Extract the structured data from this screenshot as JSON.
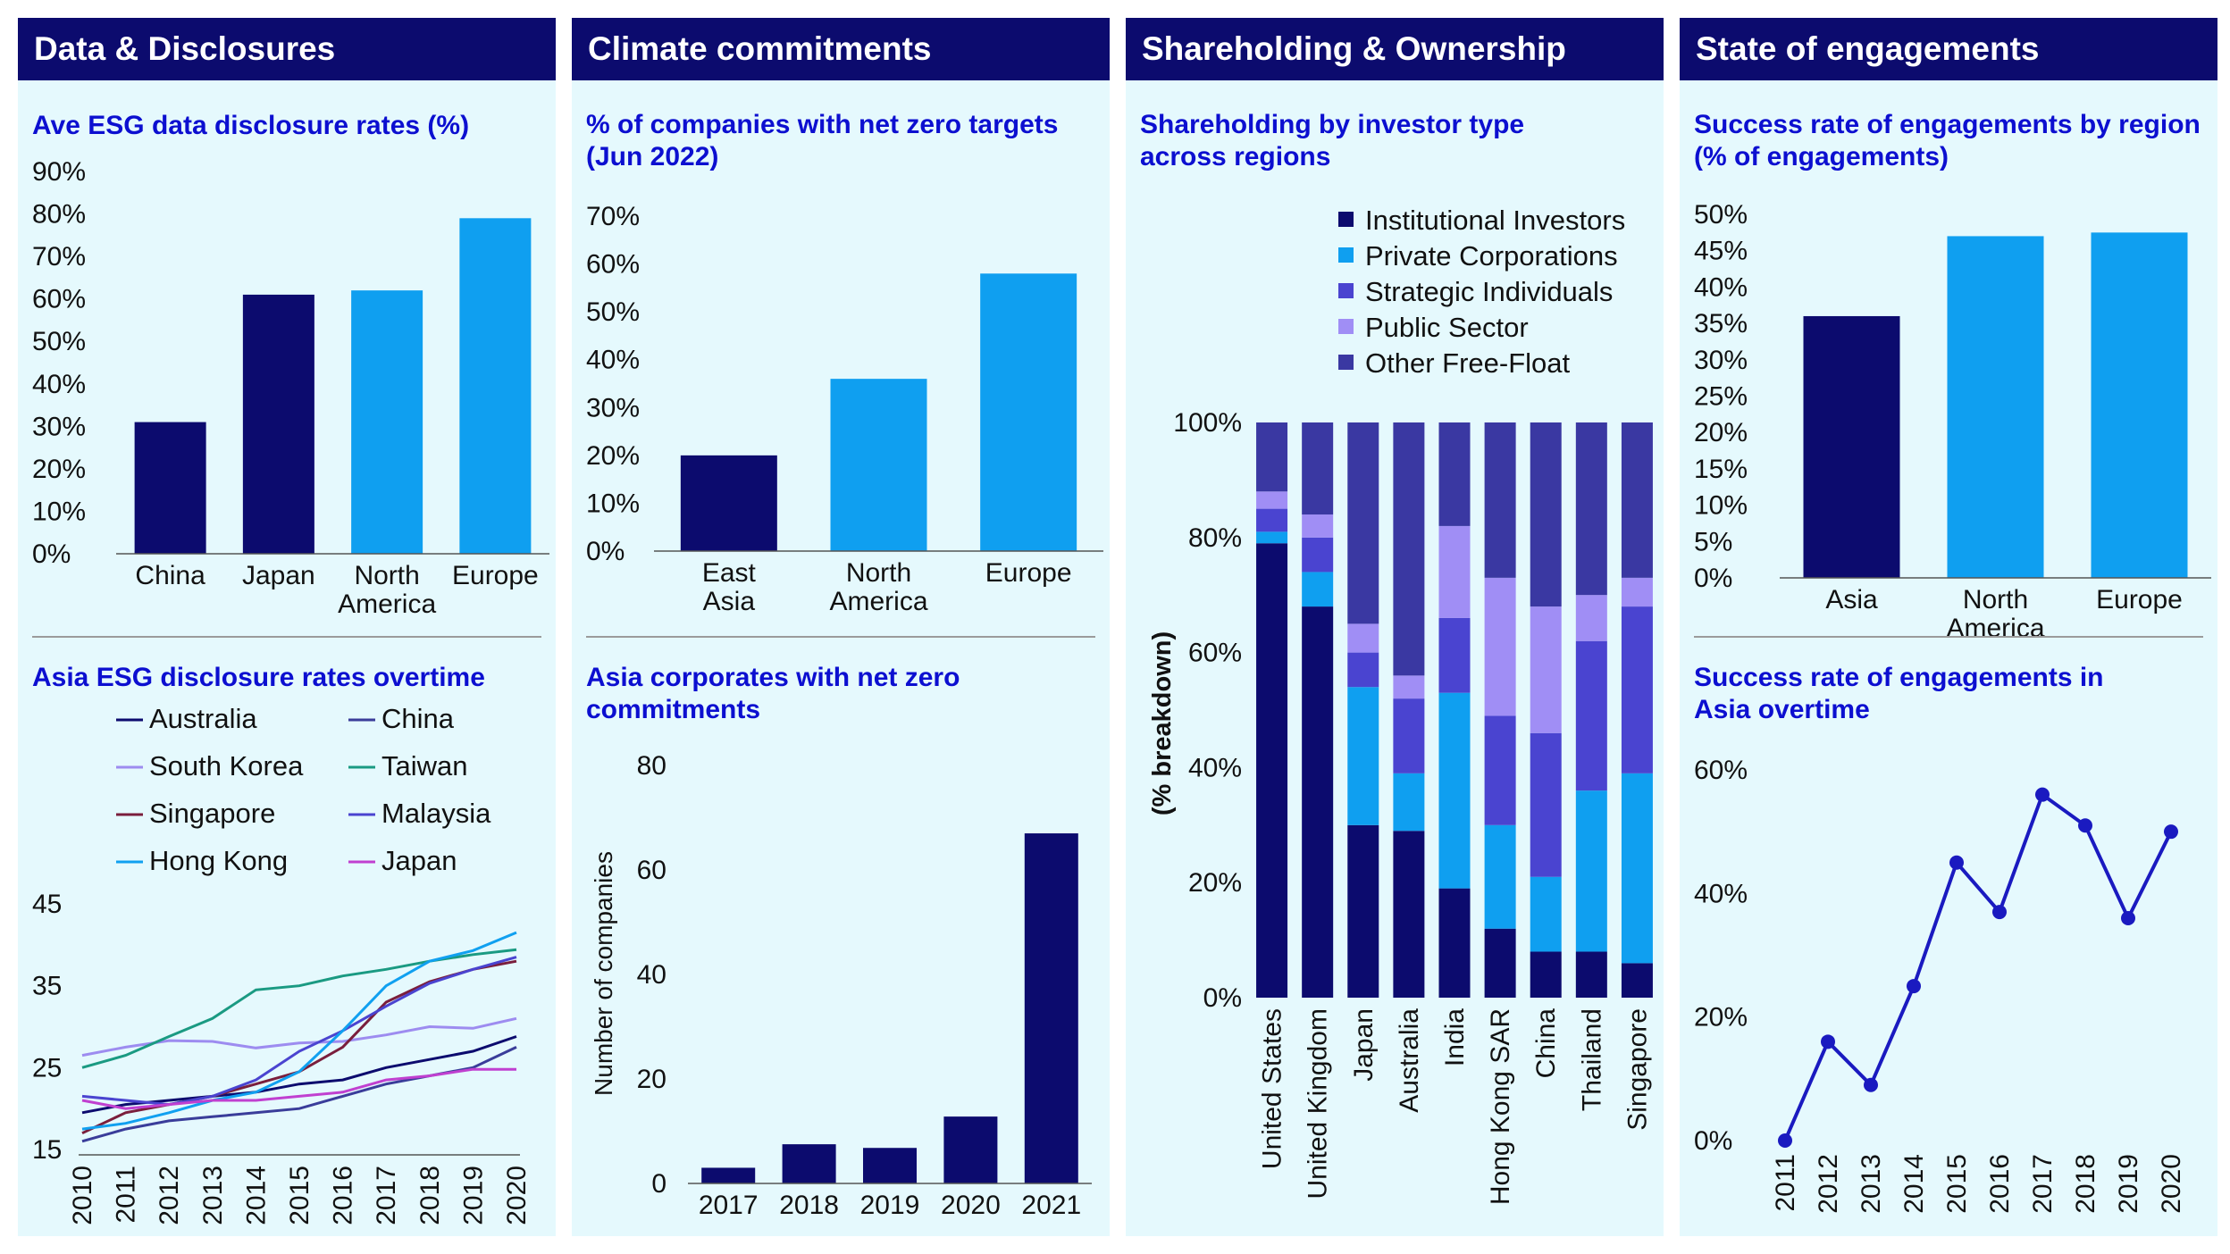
{
  "panels": [
    {
      "title": "Data & Disclosures"
    },
    {
      "title": "Climate commitments"
    },
    {
      "title": "Shareholding & Ownership"
    },
    {
      "title": "State of engagements"
    }
  ],
  "colors": {
    "dark": "#0c0b6e",
    "light": "#0f9ff0",
    "accent": "#1a1ac0"
  },
  "chart_data": [
    {
      "id": "esg_disclosure",
      "type": "bar",
      "title": "Ave ESG data disclosure rates (%)",
      "categories": [
        "China",
        "Japan",
        "North America",
        "Europe"
      ],
      "category_lines": [
        [
          "China"
        ],
        [
          "Japan"
        ],
        [
          "North",
          "America"
        ],
        [
          "Europe"
        ]
      ],
      "values": [
        31,
        61,
        62,
        79
      ],
      "bar_colors": [
        "#0c0b6e",
        "#0c0b6e",
        "#0f9ff0",
        "#0f9ff0"
      ],
      "ylim": [
        0,
        90
      ],
      "yticks": [
        0,
        10,
        20,
        30,
        40,
        50,
        60,
        70,
        80,
        90
      ],
      "ytick_labels": [
        "0%",
        "10%",
        "20%",
        "30%",
        "40%",
        "50%",
        "60%",
        "70%",
        "80%",
        "90%"
      ]
    },
    {
      "id": "asia_esg_overtime",
      "type": "line",
      "title": "Asia ESG disclosure rates overtime",
      "x": [
        2010,
        2011,
        2012,
        2013,
        2014,
        2015,
        2016,
        2017,
        2018,
        2019,
        2020
      ],
      "ylim": [
        15,
        45
      ],
      "yticks": [
        15,
        25,
        35,
        45
      ],
      "ytick_labels": [
        "15",
        "25",
        "35",
        "45"
      ],
      "series": [
        {
          "name": "Australia",
          "color": "#0c0b6e",
          "values": [
            19.5,
            20.5,
            21,
            21.5,
            22,
            23,
            23.5,
            25,
            26,
            27,
            28.8
          ]
        },
        {
          "name": "China",
          "color": "#3a3d9a",
          "values": [
            16,
            17.5,
            18.5,
            19,
            19.5,
            20,
            21.5,
            23,
            24,
            25,
            27.5
          ]
        },
        {
          "name": "South Korea",
          "color": "#9d8cf0",
          "values": [
            26.5,
            27.5,
            28.3,
            28.2,
            27.4,
            28,
            28.2,
            29,
            30,
            29.8,
            31
          ]
        },
        {
          "name": "Taiwan",
          "color": "#1a9a82",
          "values": [
            25,
            26.5,
            28.8,
            31,
            34.5,
            35,
            36.2,
            37,
            38,
            38.8,
            39.4
          ]
        },
        {
          "name": "Singapore",
          "color": "#7a1e3c",
          "values": [
            17,
            19.5,
            20.5,
            21.5,
            23,
            24.5,
            27.5,
            33,
            35.5,
            37,
            38
          ]
        },
        {
          "name": "Malaysia",
          "color": "#4a44d0",
          "values": [
            21.5,
            21,
            20.5,
            21.5,
            23.5,
            27,
            29.5,
            32.5,
            35.3,
            37,
            38.5
          ]
        },
        {
          "name": "Hong Kong",
          "color": "#10a0f0",
          "values": [
            17.5,
            18.2,
            19.5,
            21,
            22,
            24.5,
            29.5,
            35,
            38,
            39.3,
            41.5
          ]
        },
        {
          "name": "Japan",
          "color": "#c040d0",
          "values": [
            21,
            20,
            20.5,
            21,
            21,
            21.5,
            22,
            23.5,
            24,
            24.8,
            24.8
          ]
        }
      ]
    },
    {
      "id": "net_zero_targets",
      "type": "bar",
      "title": "% of companies with net zero targets (Jun 2022)",
      "title_lines": [
        "% of companies with net zero targets",
        "(Jun 2022)"
      ],
      "categories": [
        "East Asia",
        "North America",
        "Europe"
      ],
      "category_lines": [
        [
          "East",
          "Asia"
        ],
        [
          "North",
          "America"
        ],
        [
          "Europe"
        ]
      ],
      "values": [
        20,
        36,
        58
      ],
      "bar_colors": [
        "#0c0b6e",
        "#0f9ff0",
        "#0f9ff0"
      ],
      "ylim": [
        0,
        70
      ],
      "yticks": [
        0,
        10,
        20,
        30,
        40,
        50,
        60,
        70
      ],
      "ytick_labels": [
        "0%",
        "10%",
        "20%",
        "30%",
        "40%",
        "50%",
        "60%",
        "70%"
      ]
    },
    {
      "id": "asia_net_zero",
      "type": "bar",
      "title": "Asia corporates with net zero commitments",
      "title_lines": [
        "Asia corporates with net zero",
        "commitments"
      ],
      "categories": [
        "2017",
        "2018",
        "2019",
        "2020",
        "2021"
      ],
      "values": [
        3,
        7.5,
        6.8,
        12.8,
        67
      ],
      "ylabel": "Number of companies",
      "ylim": [
        0,
        80
      ],
      "yticks": [
        0,
        20,
        40,
        60,
        80
      ],
      "ytick_labels": [
        "0",
        "20",
        "40",
        "60",
        "80"
      ]
    },
    {
      "id": "shareholding",
      "type": "bar",
      "stacked": true,
      "title": "Shareholding by investor type across regions",
      "title_lines": [
        "Shareholding by investor type",
        "across regions"
      ],
      "ylabel": "(% breakdown)",
      "categories": [
        "United States",
        "United Kingdom",
        "Japan",
        "Australia",
        "India",
        "Hong Kong SAR",
        "China",
        "Thailand",
        "Singapore"
      ],
      "ylim": [
        0,
        100
      ],
      "yticks": [
        0,
        20,
        40,
        60,
        80,
        100
      ],
      "ytick_labels": [
        "0%",
        "20%",
        "40%",
        "60%",
        "80%",
        "100%"
      ],
      "series": [
        {
          "name": "Institutional Investors",
          "color": "#0c0b6e",
          "values": [
            79,
            68,
            30,
            29,
            19,
            12,
            8,
            8,
            6
          ]
        },
        {
          "name": "Private Corporations",
          "color": "#0f9ff0",
          "values": [
            2,
            6,
            24,
            10,
            34,
            18,
            13,
            28,
            33
          ]
        },
        {
          "name": "Strategic Individuals",
          "color": "#4a44d0",
          "values": [
            4,
            6,
            6,
            13,
            13,
            19,
            25,
            26,
            29
          ]
        },
        {
          "name": "Public Sector",
          "color": "#a08ef5",
          "values": [
            3,
            4,
            5,
            4,
            16,
            24,
            22,
            8,
            5
          ]
        },
        {
          "name": "Other Free-Float",
          "color": "#3a38a2",
          "values": [
            12,
            16,
            35,
            44,
            18,
            27,
            32,
            30,
            27
          ]
        }
      ]
    },
    {
      "id": "engagement_region",
      "type": "bar",
      "title": "Success rate of engagements by region (% of engagements)",
      "title_lines": [
        "Success rate of engagements by region",
        "(% of engagements)"
      ],
      "categories": [
        "Asia",
        "North America",
        "Europe"
      ],
      "category_lines": [
        [
          "Asia"
        ],
        [
          "North",
          "America"
        ],
        [
          "Europe"
        ]
      ],
      "values": [
        36,
        47,
        47.5
      ],
      "bar_colors": [
        "#0c0b6e",
        "#0f9ff0",
        "#0f9ff0"
      ],
      "ylim": [
        0,
        50
      ],
      "yticks": [
        0,
        5,
        10,
        15,
        20,
        25,
        30,
        35,
        40,
        45,
        50
      ],
      "ytick_labels": [
        "0%",
        "5%",
        "10%",
        "15%",
        "20%",
        "25%",
        "30%",
        "35%",
        "40%",
        "45%",
        "50%"
      ]
    },
    {
      "id": "engagement_asia_overtime",
      "type": "line",
      "title": "Success rate of engagements in Asia overtime",
      "title_lines": [
        "Success rate of engagements in",
        "Asia overtime"
      ],
      "x": [
        2011,
        2012,
        2013,
        2014,
        2015,
        2016,
        2017,
        2018,
        2019,
        2020
      ],
      "values": [
        0,
        16,
        9,
        25,
        45,
        37,
        56,
        51,
        36,
        50
      ],
      "color": "#1a1ac0",
      "ylim": [
        0,
        60
      ],
      "yticks": [
        0,
        20,
        40,
        60
      ],
      "ytick_labels": [
        "0%",
        "20%",
        "40%",
        "60%"
      ]
    }
  ]
}
